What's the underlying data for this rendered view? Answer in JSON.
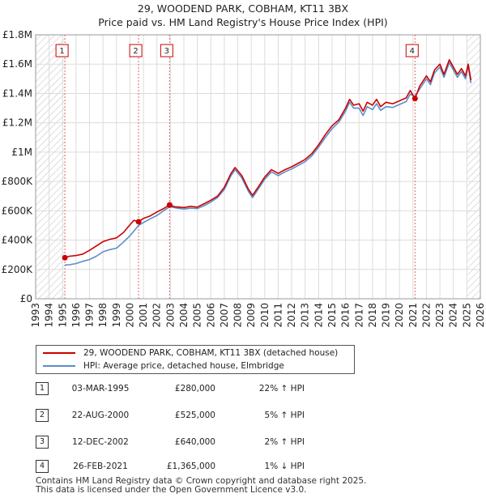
{
  "title_line1": "29, WOODEND PARK, COBHAM, KT11 3BX",
  "title_line2": "Price paid vs. HM Land Registry's House Price Index (HPI)",
  "chart_data": {
    "type": "line",
    "title": "29, WOODEND PARK, COBHAM, KT11 3BX — Price paid vs. HM Land Registry's House Price Index (HPI)",
    "xlabel": "",
    "ylabel": "",
    "xlim": [
      1993,
      2026
    ],
    "ylim": [
      0,
      1800000
    ],
    "x_ticks": [
      1993,
      1994,
      1995,
      1996,
      1997,
      1998,
      1999,
      2000,
      2001,
      2002,
      2003,
      2004,
      2005,
      2006,
      2007,
      2008,
      2009,
      2010,
      2011,
      2012,
      2013,
      2014,
      2015,
      2016,
      2017,
      2018,
      2019,
      2020,
      2021,
      2022,
      2023,
      2024,
      2025,
      2026
    ],
    "y_ticks": [
      {
        "value": 0,
        "label": "£0"
      },
      {
        "value": 200000,
        "label": "£200K"
      },
      {
        "value": 400000,
        "label": "£400K"
      },
      {
        "value": 600000,
        "label": "£600K"
      },
      {
        "value": 800000,
        "label": "£800K"
      },
      {
        "value": 1000000,
        "label": "£1M"
      },
      {
        "value": 1200000,
        "label": "£1.2M"
      },
      {
        "value": 1400000,
        "label": "£1.4M"
      },
      {
        "value": 1600000,
        "label": "£1.6M"
      },
      {
        "value": 1800000,
        "label": "£1.8M"
      }
    ],
    "grid": true,
    "hatched_ranges": [
      [
        1993,
        1995.17
      ],
      [
        2025.0,
        2026
      ]
    ],
    "series": [
      {
        "name": "29, WOODEND PARK, COBHAM, KT11 3BX (detached house)",
        "color": "#cc0000",
        "points": [
          [
            1995.17,
            280000
          ],
          [
            1995.5,
            290000
          ],
          [
            1996,
            295000
          ],
          [
            1996.5,
            305000
          ],
          [
            1997,
            330000
          ],
          [
            1997.5,
            360000
          ],
          [
            1998,
            390000
          ],
          [
            1998.5,
            405000
          ],
          [
            1999,
            415000
          ],
          [
            1999.5,
            450000
          ],
          [
            2000,
            505000
          ],
          [
            2000.3,
            535000
          ],
          [
            2000.64,
            525000
          ],
          [
            2001,
            548000
          ],
          [
            2001.5,
            565000
          ],
          [
            2002,
            592000
          ],
          [
            2002.5,
            615000
          ],
          [
            2002.94,
            640000
          ],
          [
            2003.3,
            628000
          ],
          [
            2004,
            622000
          ],
          [
            2004.5,
            630000
          ],
          [
            2005,
            625000
          ],
          [
            2005.5,
            648000
          ],
          [
            2006,
            672000
          ],
          [
            2006.5,
            700000
          ],
          [
            2007,
            760000
          ],
          [
            2007.5,
            855000
          ],
          [
            2007.8,
            895000
          ],
          [
            2008.3,
            840000
          ],
          [
            2008.8,
            745000
          ],
          [
            2009.1,
            705000
          ],
          [
            2009.5,
            760000
          ],
          [
            2010,
            830000
          ],
          [
            2010.5,
            880000
          ],
          [
            2011,
            855000
          ],
          [
            2011.5,
            880000
          ],
          [
            2012,
            900000
          ],
          [
            2012.5,
            925000
          ],
          [
            2013,
            950000
          ],
          [
            2013.5,
            990000
          ],
          [
            2014,
            1050000
          ],
          [
            2014.5,
            1120000
          ],
          [
            2015,
            1180000
          ],
          [
            2015.5,
            1220000
          ],
          [
            2016,
            1300000
          ],
          [
            2016.3,
            1360000
          ],
          [
            2016.6,
            1320000
          ],
          [
            2017,
            1330000
          ],
          [
            2017.3,
            1280000
          ],
          [
            2017.6,
            1340000
          ],
          [
            2018,
            1320000
          ],
          [
            2018.3,
            1360000
          ],
          [
            2018.6,
            1310000
          ],
          [
            2019,
            1340000
          ],
          [
            2019.5,
            1330000
          ],
          [
            2020,
            1350000
          ],
          [
            2020.5,
            1370000
          ],
          [
            2020.8,
            1420000
          ],
          [
            2021.15,
            1365000
          ],
          [
            2021.5,
            1450000
          ],
          [
            2022,
            1520000
          ],
          [
            2022.3,
            1480000
          ],
          [
            2022.6,
            1560000
          ],
          [
            2023,
            1600000
          ],
          [
            2023.3,
            1530000
          ],
          [
            2023.7,
            1630000
          ],
          [
            2024,
            1580000
          ],
          [
            2024.3,
            1530000
          ],
          [
            2024.6,
            1570000
          ],
          [
            2024.9,
            1520000
          ],
          [
            2025.1,
            1600000
          ],
          [
            2025.3,
            1490000
          ]
        ]
      },
      {
        "name": "HPI: Average price, detached house, Elmbridge",
        "color": "#5b8ec9",
        "points": [
          [
            1995.17,
            230000
          ],
          [
            1995.5,
            232000
          ],
          [
            1996,
            240000
          ],
          [
            1996.5,
            255000
          ],
          [
            1997,
            268000
          ],
          [
            1997.5,
            290000
          ],
          [
            1998,
            320000
          ],
          [
            1998.5,
            335000
          ],
          [
            1999,
            345000
          ],
          [
            1999.5,
            385000
          ],
          [
            2000,
            430000
          ],
          [
            2000.64,
            500000
          ],
          [
            2001,
            520000
          ],
          [
            2001.5,
            545000
          ],
          [
            2002,
            568000
          ],
          [
            2002.5,
            600000
          ],
          [
            2002.94,
            628000
          ],
          [
            2003.5,
            618000
          ],
          [
            2004,
            612000
          ],
          [
            2004.5,
            618000
          ],
          [
            2005,
            615000
          ],
          [
            2005.5,
            635000
          ],
          [
            2006,
            660000
          ],
          [
            2006.5,
            690000
          ],
          [
            2007,
            745000
          ],
          [
            2007.5,
            840000
          ],
          [
            2007.8,
            880000
          ],
          [
            2008.3,
            825000
          ],
          [
            2008.8,
            730000
          ],
          [
            2009.1,
            690000
          ],
          [
            2009.5,
            745000
          ],
          [
            2010,
            815000
          ],
          [
            2010.5,
            865000
          ],
          [
            2011,
            840000
          ],
          [
            2011.5,
            865000
          ],
          [
            2012,
            885000
          ],
          [
            2012.5,
            910000
          ],
          [
            2013,
            935000
          ],
          [
            2013.5,
            975000
          ],
          [
            2014,
            1035000
          ],
          [
            2014.5,
            1100000
          ],
          [
            2015,
            1160000
          ],
          [
            2015.5,
            1205000
          ],
          [
            2016,
            1280000
          ],
          [
            2016.3,
            1340000
          ],
          [
            2016.6,
            1300000
          ],
          [
            2017,
            1300000
          ],
          [
            2017.3,
            1250000
          ],
          [
            2017.6,
            1310000
          ],
          [
            2018,
            1290000
          ],
          [
            2018.3,
            1330000
          ],
          [
            2018.6,
            1285000
          ],
          [
            2019,
            1310000
          ],
          [
            2019.5,
            1305000
          ],
          [
            2020,
            1325000
          ],
          [
            2020.5,
            1345000
          ],
          [
            2020.8,
            1395000
          ],
          [
            2021.15,
            1380000
          ],
          [
            2021.5,
            1430000
          ],
          [
            2022,
            1500000
          ],
          [
            2022.3,
            1460000
          ],
          [
            2022.6,
            1540000
          ],
          [
            2023,
            1580000
          ],
          [
            2023.3,
            1510000
          ],
          [
            2023.7,
            1610000
          ],
          [
            2024,
            1560000
          ],
          [
            2024.3,
            1510000
          ],
          [
            2024.6,
            1550000
          ],
          [
            2024.9,
            1500000
          ],
          [
            2025.1,
            1585000
          ],
          [
            2025.3,
            1470000
          ]
        ]
      }
    ],
    "sale_markers": [
      {
        "label": "1",
        "x": 1995.17,
        "value": 280000
      },
      {
        "label": "2",
        "x": 2000.64,
        "value": 525000
      },
      {
        "label": "3",
        "x": 2002.94,
        "value": 640000
      },
      {
        "label": "4",
        "x": 2021.15,
        "value": 1365000
      }
    ]
  },
  "legend": [
    {
      "label": "29, WOODEND PARK, COBHAM, KT11 3BX (detached house)",
      "color": "#cc0000"
    },
    {
      "label": "HPI: Average price, detached house, Elmbridge",
      "color": "#5b8ec9"
    }
  ],
  "sales": [
    {
      "num": "1",
      "date": "03-MAR-1995",
      "price": "£280,000",
      "hpi": "22% ↑ HPI"
    },
    {
      "num": "2",
      "date": "22-AUG-2000",
      "price": "£525,000",
      "hpi": "5% ↑ HPI"
    },
    {
      "num": "3",
      "date": "12-DEC-2002",
      "price": "£640,000",
      "hpi": "2% ↑ HPI"
    },
    {
      "num": "4",
      "date": "26-FEB-2021",
      "price": "£1,365,000",
      "hpi": "1% ↓ HPI"
    }
  ],
  "footer_line1": "Contains HM Land Registry data © Crown copyright and database right 2025.",
  "footer_line2": "This data is licensed under the Open Government Licence v3.0."
}
